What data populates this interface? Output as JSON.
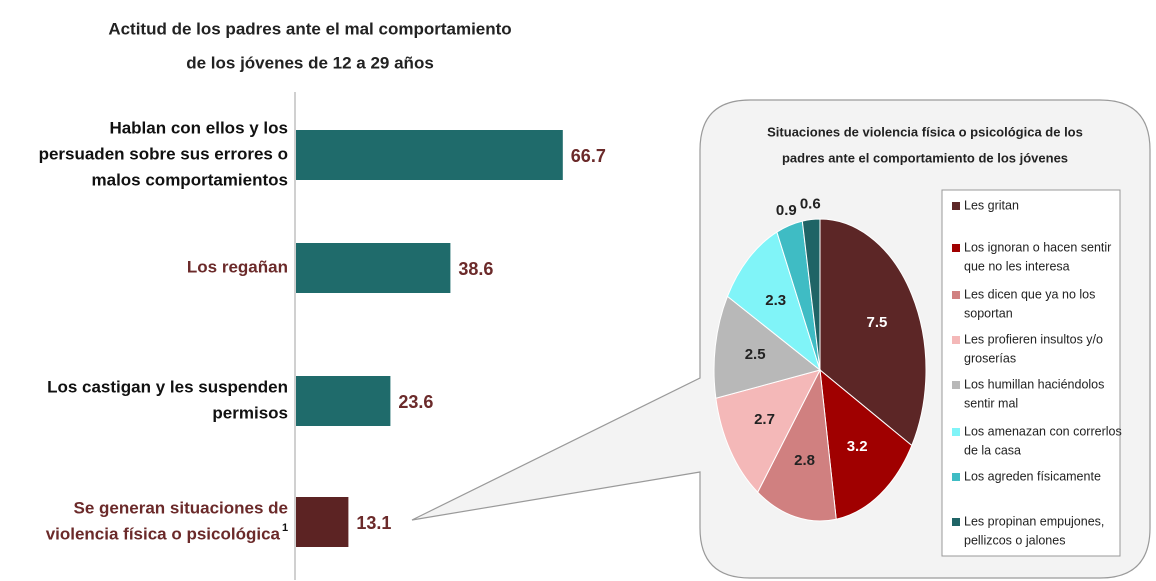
{
  "chart_data": [
    {
      "type": "hbar",
      "title": [
        "Actitud de los padres ante el mal comportamiento",
        "de los jóvenes de 12 a 29 años"
      ],
      "categories": [
        [
          "Hablan con ellos y los",
          "persuaden sobre sus errores o",
          "malos comportamientos"
        ],
        [
          "Los regañan"
        ],
        [
          "Los castigan y les suspenden",
          "permisos"
        ],
        [
          "Se generan situaciones de",
          "violencia física o psicológica"
        ]
      ],
      "category_superscript": "1",
      "values": [
        66.7,
        38.6,
        23.6,
        13.1
      ],
      "colors": [
        "#1f6b6b",
        "#1f6b6b",
        "#1f6b6b",
        "#5c2323"
      ],
      "label_colors": [
        "#111111",
        "#6b2a2a",
        "#111111",
        "#6b2a2a"
      ],
      "xlim": [
        0,
        70
      ]
    },
    {
      "type": "pie",
      "title": [
        "Situaciones de violencia física o psicológica de los",
        "padres ante el comportamiento de los jóvenes"
      ],
      "categories": [
        [
          "Les gritan"
        ],
        [
          "Los ignoran o hacen sentir",
          "que no les interesa"
        ],
        [
          "Les dicen que ya no los",
          "soportan"
        ],
        [
          "Les profieren insultos y/o",
          "groserías"
        ],
        [
          "Los humillan haciéndolos",
          "sentir mal"
        ],
        [
          "Los amenazan con correrlos",
          "de la casa"
        ],
        [
          "Los agreden físicamente"
        ],
        [
          "Les propinan empujones,",
          "pellizcos o jalones"
        ]
      ],
      "values": [
        7.5,
        3.2,
        2.8,
        2.7,
        2.5,
        2.3,
        0.9,
        0.6
      ],
      "colors": [
        "#5c2626",
        "#a00000",
        "#d08080",
        "#f4b8b8",
        "#b8b8b8",
        "#80f4f8",
        "#3fbcc4",
        "#1f6466"
      ],
      "legend": "right"
    }
  ]
}
